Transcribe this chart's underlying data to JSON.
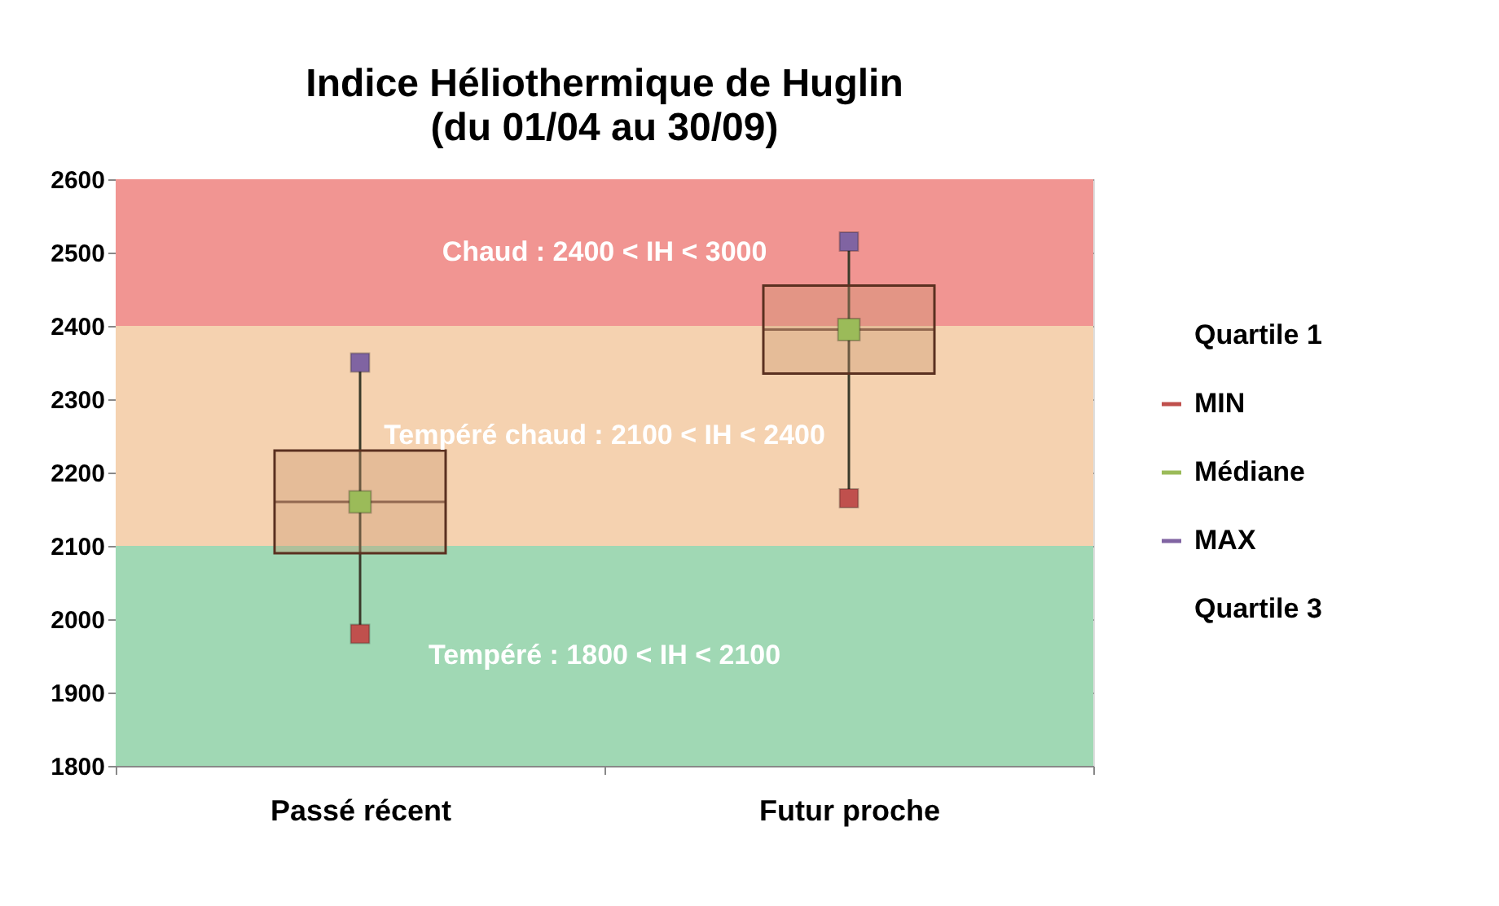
{
  "chart_data": {
    "type": "box",
    "title": "Indice Héliothermique de Huglin",
    "subtitle": "(du 01/04 au 30/09)",
    "categories": [
      "Passé récent",
      "Futur proche"
    ],
    "boxes": [
      {
        "low": 1980,
        "q1": 2090,
        "median": 2160,
        "q3": 2230,
        "high": 2350
      },
      {
        "low": 2165,
        "q1": 2335,
        "median": 2395,
        "q3": 2455,
        "high": 2515
      }
    ],
    "series": [
      {
        "name": "MIN",
        "type": "scatter",
        "marker": "square",
        "color": "#c0504d",
        "values": [
          1980,
          2165
        ]
      },
      {
        "name": "Médiane",
        "type": "scatter",
        "marker": "square",
        "color": "#9bbb59",
        "values": [
          2160,
          2395
        ]
      },
      {
        "name": "MAX",
        "type": "scatter",
        "marker": "square",
        "color": "#8064a2",
        "values": [
          2350,
          2515
        ]
      }
    ],
    "bands": [
      {
        "axis": "y",
        "from": 1800,
        "to": 2100,
        "label": "Tempéré : 1800 < IH < 2100",
        "color": "#a0d8b4"
      },
      {
        "axis": "y",
        "from": 2100,
        "to": 2400,
        "label": "Tempéré chaud : 2100 < IH < 2400",
        "color": "#f5d2b0"
      },
      {
        "axis": "y",
        "from": 2400,
        "to": 2600,
        "label": "Chaud : 2400 < IH < 3000",
        "color": "#f19592"
      }
    ],
    "ylim": [
      1800,
      2600
    ],
    "yticks": [
      1800,
      1900,
      2000,
      2100,
      2200,
      2300,
      2400,
      2500,
      2600
    ],
    "annotations": [
      "Quartile 1",
      "Quartile 3"
    ],
    "grid": "y",
    "legend": "right"
  }
}
